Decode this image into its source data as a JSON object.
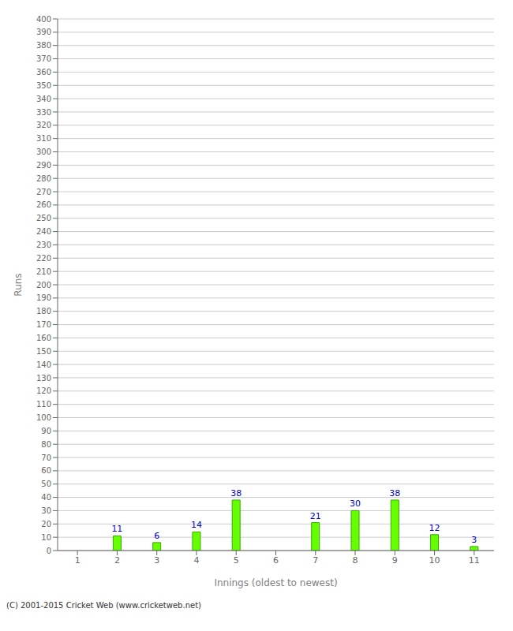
{
  "chart_data": {
    "type": "bar",
    "categories": [
      "1",
      "2",
      "3",
      "4",
      "5",
      "6",
      "7",
      "8",
      "9",
      "10",
      "11"
    ],
    "values": [
      0,
      11,
      6,
      14,
      38,
      0,
      21,
      30,
      38,
      12,
      3
    ],
    "color": "#66ff00",
    "xlabel": "Innings (oldest to newest)",
    "ylabel": "Runs",
    "ylim": [
      0,
      400
    ],
    "yticks": [
      0,
      10,
      20,
      30,
      40,
      50,
      60,
      70,
      80,
      90,
      100,
      110,
      120,
      130,
      140,
      150,
      160,
      170,
      180,
      190,
      200,
      210,
      220,
      230,
      240,
      250,
      260,
      270,
      280,
      290,
      300,
      310,
      320,
      330,
      340,
      350,
      360,
      370,
      380,
      390,
      400
    ],
    "grid": true,
    "data_labels": true,
    "annotations": [
      "(C) 2001-2015 Cricket Web (www.cricketweb.net)"
    ]
  }
}
